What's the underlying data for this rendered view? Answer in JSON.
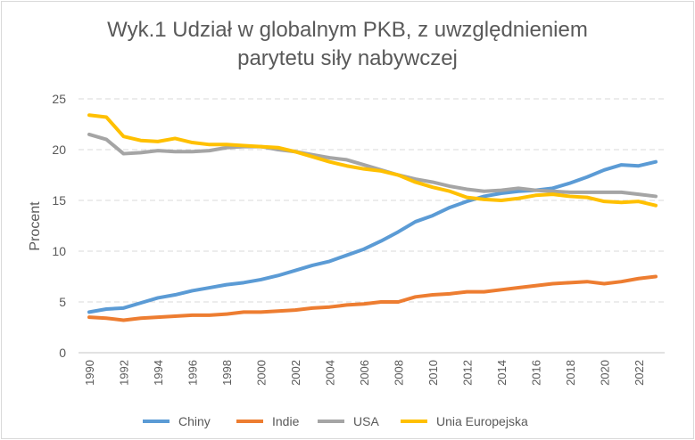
{
  "chart_data": {
    "type": "line",
    "title_line1": "Wyk.1 Udział w globalnym PKB, z uwzględnieniem",
    "title_line2": "parytetu siły nabywczej",
    "xlabel": "",
    "ylabel": "Procent",
    "ylim": [
      0,
      25
    ],
    "yticks": [
      0,
      5,
      10,
      15,
      20,
      25
    ],
    "xticks": [
      1990,
      1992,
      1994,
      1996,
      1998,
      2000,
      2002,
      2004,
      2006,
      2008,
      2010,
      2012,
      2014,
      2016,
      2018,
      2020,
      2022
    ],
    "grid": "horizontal-dashed",
    "legend": "bottom",
    "x": [
      1990,
      1991,
      1992,
      1993,
      1994,
      1995,
      1996,
      1997,
      1998,
      1999,
      2000,
      2001,
      2002,
      2003,
      2004,
      2005,
      2006,
      2007,
      2008,
      2009,
      2010,
      2011,
      2012,
      2013,
      2014,
      2015,
      2016,
      2017,
      2018,
      2019,
      2020,
      2021,
      2022,
      2023
    ],
    "series": [
      {
        "name": "Chiny",
        "color": "#5b9bd5",
        "values": [
          4.0,
          4.3,
          4.4,
          4.9,
          5.4,
          5.7,
          6.1,
          6.4,
          6.7,
          6.9,
          7.2,
          7.6,
          8.1,
          8.6,
          9.0,
          9.6,
          10.2,
          11.0,
          11.9,
          12.9,
          13.5,
          14.3,
          14.9,
          15.4,
          15.7,
          15.9,
          16.0,
          16.2,
          16.7,
          17.3,
          18.0,
          18.5,
          18.4,
          18.8
        ]
      },
      {
        "name": "Indie",
        "color": "#ed7d31",
        "values": [
          3.5,
          3.4,
          3.2,
          3.4,
          3.5,
          3.6,
          3.7,
          3.7,
          3.8,
          4.0,
          4.0,
          4.1,
          4.2,
          4.4,
          4.5,
          4.7,
          4.8,
          5.0,
          5.0,
          5.5,
          5.7,
          5.8,
          6.0,
          6.0,
          6.2,
          6.4,
          6.6,
          6.8,
          6.9,
          7.0,
          6.8,
          7.0,
          7.3,
          7.5
        ]
      },
      {
        "name": "USA",
        "color": "#a5a5a5",
        "values": [
          21.5,
          21.0,
          19.6,
          19.7,
          19.9,
          19.8,
          19.8,
          19.9,
          20.2,
          20.3,
          20.3,
          20.0,
          19.8,
          19.5,
          19.2,
          19.0,
          18.5,
          18.0,
          17.5,
          17.1,
          16.8,
          16.4,
          16.1,
          15.9,
          16.0,
          16.2,
          16.0,
          15.9,
          15.8,
          15.8,
          15.8,
          15.8,
          15.6,
          15.4
        ]
      },
      {
        "name": "Unia Europejska",
        "color": "#ffc000",
        "values": [
          23.4,
          23.2,
          21.3,
          20.9,
          20.8,
          21.1,
          20.7,
          20.5,
          20.5,
          20.4,
          20.3,
          20.2,
          19.8,
          19.3,
          18.8,
          18.4,
          18.1,
          17.9,
          17.5,
          16.8,
          16.3,
          15.9,
          15.3,
          15.1,
          15.0,
          15.2,
          15.5,
          15.6,
          15.4,
          15.3,
          14.9,
          14.8,
          14.9,
          14.5
        ]
      }
    ]
  }
}
